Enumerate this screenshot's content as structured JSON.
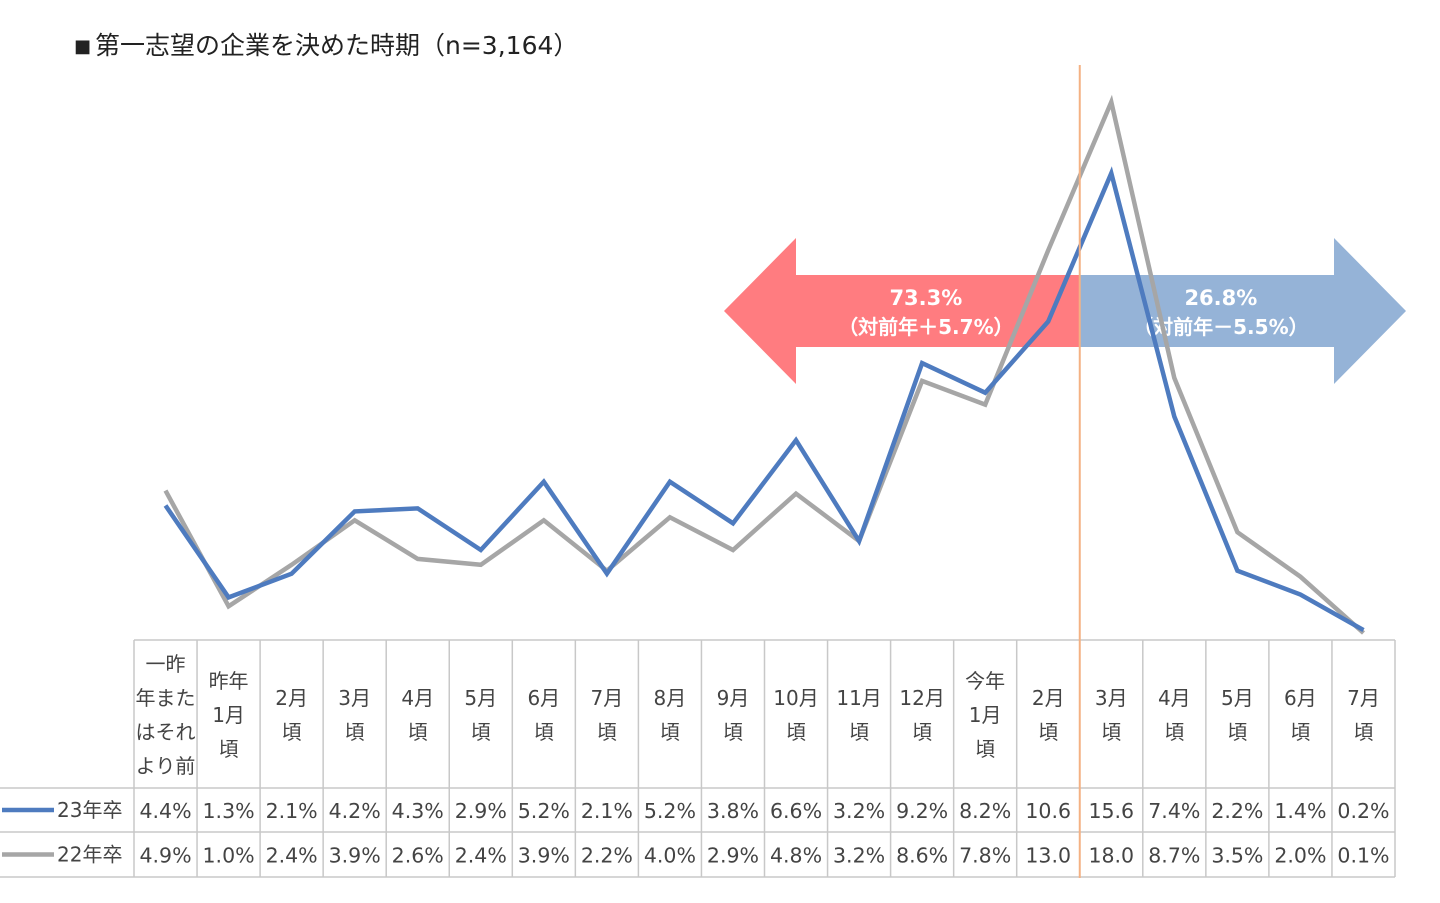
{
  "title": "第一志望の企業を決めた時期（n=3,164）",
  "title_marker": "■",
  "chart_data": {
    "type": "line",
    "title": "第一志望の企業を決めた時期（n=3,164）",
    "categories": [
      [
        "一昨",
        "年また",
        "はそれ",
        "より前"
      ],
      [
        "昨年",
        "1月",
        "頃"
      ],
      [
        "2月",
        "頃"
      ],
      [
        "3月",
        "頃"
      ],
      [
        "4月",
        "頃"
      ],
      [
        "5月",
        "頃"
      ],
      [
        "6月",
        "頃"
      ],
      [
        "7月",
        "頃"
      ],
      [
        "8月",
        "頃"
      ],
      [
        "9月",
        "頃"
      ],
      [
        "10月",
        "頃"
      ],
      [
        "11月",
        "頃"
      ],
      [
        "12月",
        "頃"
      ],
      [
        "今年",
        "1月",
        "頃"
      ],
      [
        "2月",
        "頃"
      ],
      [
        "3月",
        "頃"
      ],
      [
        "4月",
        "頃"
      ],
      [
        "5月",
        "頃"
      ],
      [
        "6月",
        "頃"
      ],
      [
        "7月",
        "頃"
      ]
    ],
    "series": [
      {
        "name": "23年卒",
        "color": "#4e7bbf",
        "values": [
          4.4,
          1.3,
          2.1,
          4.2,
          4.3,
          2.9,
          5.2,
          2.1,
          5.2,
          3.8,
          6.6,
          3.2,
          9.2,
          8.2,
          10.6,
          15.6,
          7.4,
          2.2,
          1.4,
          0.2
        ],
        "labels": [
          "4.4%",
          "1.3%",
          "2.1%",
          "4.2%",
          "4.3%",
          "2.9%",
          "5.2%",
          "2.1%",
          "5.2%",
          "3.8%",
          "6.6%",
          "3.2%",
          "9.2%",
          "8.2%",
          "10.6",
          "15.6",
          "7.4%",
          "2.2%",
          "1.4%",
          "0.2%"
        ]
      },
      {
        "name": "22年卒",
        "color": "#a6a6a6",
        "values": [
          4.9,
          1.0,
          2.4,
          3.9,
          2.6,
          2.4,
          3.9,
          2.2,
          4.0,
          2.9,
          4.8,
          3.2,
          8.6,
          7.8,
          13.0,
          18.0,
          8.7,
          3.5,
          2.0,
          0.1
        ],
        "labels": [
          "4.9%",
          "1.0%",
          "2.4%",
          "3.9%",
          "2.6%",
          "2.4%",
          "3.9%",
          "2.2%",
          "4.0%",
          "2.9%",
          "4.8%",
          "3.2%",
          "8.6%",
          "7.8%",
          "13.0",
          "18.0",
          "8.7%",
          "3.5%",
          "2.0%",
          "0.1%"
        ]
      }
    ],
    "ylim": [
      0,
      18.0
    ],
    "grid": false,
    "divider_after_category": 14,
    "divider_color": "#f4b183",
    "annotations": [
      {
        "side": "left",
        "value": "73.3%",
        "sub": "（対前年＋5.7%）",
        "color": "#ff7c80"
      },
      {
        "side": "right",
        "value": "26.8%",
        "sub": "（対前年－5.5%）",
        "color": "#95b3d7"
      }
    ]
  }
}
